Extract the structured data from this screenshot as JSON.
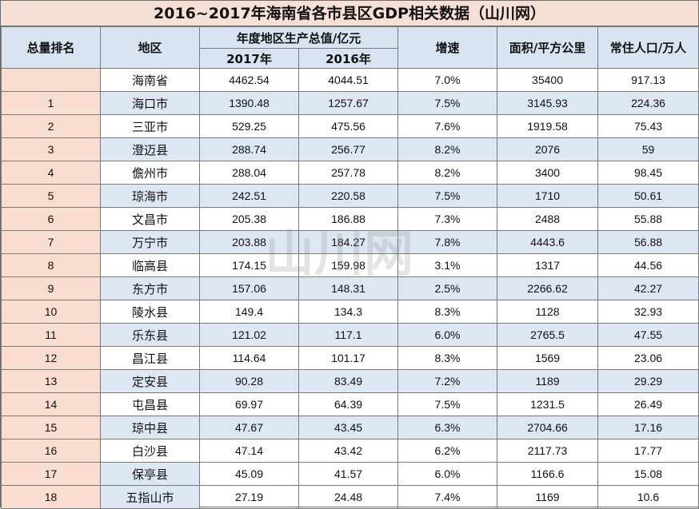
{
  "chart_data": {
    "type": "table",
    "title": "2016~2017年海南省各市县区GDP相关数据（山川网）",
    "headers": {
      "rank": "总量排名",
      "area": "地区",
      "gdp_group": "年度地区生产总值/亿元",
      "gdp_2017": "2017年",
      "gdp_2016": "2016年",
      "growth": "增速",
      "land": "面积/平方公里",
      "population": "常住人口/万人"
    },
    "rows": [
      {
        "rank": "",
        "area": "海南省",
        "gdp_2017": "4462.54",
        "gdp_2016": "4044.51",
        "growth": "7.0%",
        "land": "35400",
        "population": "917.13"
      },
      {
        "rank": "1",
        "area": "海口市",
        "gdp_2017": "1390.48",
        "gdp_2016": "1257.67",
        "growth": "7.5%",
        "land": "3145.93",
        "population": "224.36"
      },
      {
        "rank": "2",
        "area": "三亚市",
        "gdp_2017": "529.25",
        "gdp_2016": "475.56",
        "growth": "7.6%",
        "land": "1919.58",
        "population": "75.43"
      },
      {
        "rank": "3",
        "area": "澄迈县",
        "gdp_2017": "288.74",
        "gdp_2016": "256.77",
        "growth": "8.2%",
        "land": "2076",
        "population": "59"
      },
      {
        "rank": "4",
        "area": "儋州市",
        "gdp_2017": "288.04",
        "gdp_2016": "257.78",
        "growth": "8.2%",
        "land": "3400",
        "population": "98.45"
      },
      {
        "rank": "5",
        "area": "琼海市",
        "gdp_2017": "242.51",
        "gdp_2016": "220.58",
        "growth": "7.5%",
        "land": "1710",
        "population": "50.61"
      },
      {
        "rank": "6",
        "area": "文昌市",
        "gdp_2017": "205.38",
        "gdp_2016": "186.88",
        "growth": "7.3%",
        "land": "2488",
        "population": "55.88"
      },
      {
        "rank": "7",
        "area": "万宁市",
        "gdp_2017": "203.88",
        "gdp_2016": "184.27",
        "growth": "7.8%",
        "land": "4443.6",
        "population": "56.88"
      },
      {
        "rank": "8",
        "area": "临高县",
        "gdp_2017": "174.15",
        "gdp_2016": "159.98",
        "growth": "3.1%",
        "land": "1317",
        "population": "44.56"
      },
      {
        "rank": "9",
        "area": "东方市",
        "gdp_2017": "157.06",
        "gdp_2016": "148.31",
        "growth": "2.5%",
        "land": "2266.62",
        "population": "42.27"
      },
      {
        "rank": "10",
        "area": "陵水县",
        "gdp_2017": "149.4",
        "gdp_2016": "134.3",
        "growth": "8.3%",
        "land": "1128",
        "population": "32.93"
      },
      {
        "rank": "11",
        "area": "乐东县",
        "gdp_2017": "121.02",
        "gdp_2016": "117.1",
        "growth": "6.0%",
        "land": "2765.5",
        "population": "47.55"
      },
      {
        "rank": "12",
        "area": "昌江县",
        "gdp_2017": "114.64",
        "gdp_2016": "101.17",
        "growth": "8.3%",
        "land": "1569",
        "population": "23.06"
      },
      {
        "rank": "13",
        "area": "定安县",
        "gdp_2017": "90.28",
        "gdp_2016": "83.49",
        "growth": "7.2%",
        "land": "1189",
        "population": "29.29"
      },
      {
        "rank": "14",
        "area": "屯昌县",
        "gdp_2017": "69.97",
        "gdp_2016": "64.39",
        "growth": "7.5%",
        "land": "1231.5",
        "population": "26.49"
      },
      {
        "rank": "15",
        "area": "琼中县",
        "gdp_2017": "47.67",
        "gdp_2016": "43.45",
        "growth": "6.3%",
        "land": "2704.66",
        "population": "17.16"
      },
      {
        "rank": "16",
        "area": "白沙县",
        "gdp_2017": "47.14",
        "gdp_2016": "43.42",
        "growth": "6.2%",
        "land": "2117.73",
        "population": "17.77"
      },
      {
        "rank": "17",
        "area": "保亭县",
        "gdp_2017": "45.09",
        "gdp_2016": "41.57",
        "growth": "6.0%",
        "land": "1166.6",
        "population": "15.08"
      },
      {
        "rank": "18",
        "area": "五指山市",
        "gdp_2017": "27.19",
        "gdp_2016": "24.48",
        "growth": "7.4%",
        "land": "1169",
        "population": "10.6"
      }
    ],
    "colors": {
      "title_bg": "#f6e0d6",
      "header_bg": "#d9e3f1",
      "rank_bg": "#f9ddd0",
      "band_bg": "#dde6f3",
      "grid": "#7a7a7a"
    }
  },
  "watermark": {
    "text": "山川网"
  }
}
